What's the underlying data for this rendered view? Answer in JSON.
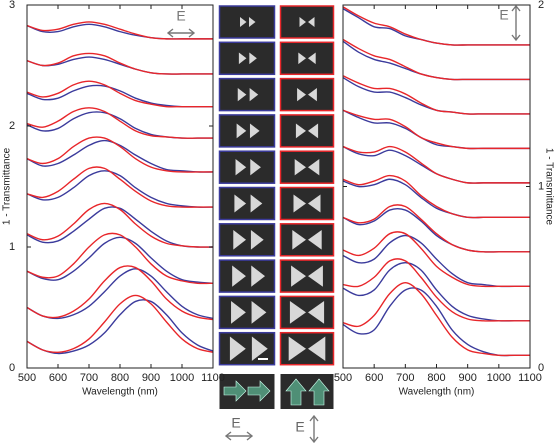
{
  "chart_data": [
    {
      "type": "line",
      "xlabel": "Wavelength (nm)",
      "ylabel": "1 - Transmittance",
      "annotation": "E",
      "x": [
        500,
        550,
        600,
        650,
        700,
        750,
        800,
        850,
        900,
        950,
        1000,
        1050,
        1100
      ],
      "xlim": [
        500,
        1100
      ],
      "xticks": [
        500,
        600,
        700,
        800,
        900,
        1000,
        1100
      ],
      "ylim": [
        0,
        3
      ],
      "yticks": [
        0,
        1,
        2,
        3
      ],
      "y_axis_side": "left",
      "series": [
        {
          "color": "#3b3b9c",
          "values": [
            0.22,
            0.15,
            0.12,
            0.14,
            0.19,
            0.29,
            0.44,
            0.55,
            0.55,
            0.44,
            0.29,
            0.19,
            0.14
          ]
        },
        {
          "color": "#e8262a",
          "values": [
            0.22,
            0.15,
            0.13,
            0.16,
            0.24,
            0.38,
            0.53,
            0.6,
            0.53,
            0.38,
            0.24,
            0.16,
            0.13
          ]
        },
        {
          "color": "#3b3b9c",
          "values": [
            0.5,
            0.43,
            0.41,
            0.44,
            0.51,
            0.63,
            0.76,
            0.82,
            0.76,
            0.63,
            0.51,
            0.44,
            0.41
          ]
        },
        {
          "color": "#e8262a",
          "values": [
            0.5,
            0.43,
            0.42,
            0.47,
            0.57,
            0.72,
            0.83,
            0.83,
            0.72,
            0.57,
            0.47,
            0.42,
            0.4
          ]
        },
        {
          "color": "#3b3b9c",
          "values": [
            0.8,
            0.74,
            0.73,
            0.8,
            0.91,
            1.03,
            1.08,
            1.03,
            0.91,
            0.8,
            0.73,
            0.71,
            0.7
          ]
        },
        {
          "color": "#e8262a",
          "values": [
            0.8,
            0.75,
            0.76,
            0.86,
            1.0,
            1.1,
            1.1,
            1.0,
            0.86,
            0.76,
            0.72,
            0.7,
            0.7
          ]
        },
        {
          "color": "#3b3b9c",
          "values": [
            1.1,
            1.04,
            1.05,
            1.13,
            1.23,
            1.32,
            1.32,
            1.23,
            1.13,
            1.05,
            1.01,
            1.0,
            1.0
          ]
        },
        {
          "color": "#e8262a",
          "values": [
            1.11,
            1.06,
            1.09,
            1.19,
            1.31,
            1.36,
            1.31,
            1.19,
            1.09,
            1.03,
            1.01,
            1.0,
            1.0
          ]
        },
        {
          "color": "#3b3b9c",
          "values": [
            1.44,
            1.39,
            1.41,
            1.49,
            1.59,
            1.63,
            1.59,
            1.49,
            1.41,
            1.36,
            1.34,
            1.33,
            1.33
          ]
        },
        {
          "color": "#e8262a",
          "values": [
            1.44,
            1.41,
            1.46,
            1.56,
            1.65,
            1.65,
            1.56,
            1.46,
            1.38,
            1.34,
            1.33,
            1.33,
            1.33
          ]
        },
        {
          "color": "#3b3b9c",
          "values": [
            1.73,
            1.67,
            1.69,
            1.76,
            1.84,
            1.88,
            1.84,
            1.76,
            1.69,
            1.64,
            1.63,
            1.62,
            1.62
          ]
        },
        {
          "color": "#e8262a",
          "values": [
            1.73,
            1.69,
            1.73,
            1.83,
            1.9,
            1.9,
            1.83,
            1.73,
            1.66,
            1.63,
            1.62,
            1.62,
            1.62
          ]
        },
        {
          "color": "#3b3b9c",
          "values": [
            2.01,
            1.96,
            1.98,
            2.06,
            2.11,
            2.11,
            2.06,
            1.98,
            1.93,
            1.91,
            1.9,
            1.9,
            1.9
          ]
        },
        {
          "color": "#e8262a",
          "values": [
            2.02,
            1.99,
            2.04,
            2.12,
            2.15,
            2.12,
            2.04,
            1.96,
            1.92,
            1.91,
            1.9,
            1.9,
            1.9
          ]
        },
        {
          "color": "#3b3b9c",
          "values": [
            2.27,
            2.22,
            2.23,
            2.29,
            2.33,
            2.33,
            2.29,
            2.23,
            2.19,
            2.17,
            2.16,
            2.16,
            2.16
          ]
        },
        {
          "color": "#e8262a",
          "values": [
            2.28,
            2.24,
            2.27,
            2.34,
            2.37,
            2.34,
            2.27,
            2.21,
            2.18,
            2.16,
            2.16,
            2.16,
            2.16
          ]
        },
        {
          "color": "#3b3b9c",
          "values": [
            2.54,
            2.5,
            2.51,
            2.55,
            2.57,
            2.55,
            2.51,
            2.47,
            2.44,
            2.43,
            2.43,
            2.43,
            2.43
          ]
        },
        {
          "color": "#e8262a",
          "values": [
            2.54,
            2.5,
            2.52,
            2.58,
            2.6,
            2.58,
            2.52,
            2.47,
            2.44,
            2.43,
            2.43,
            2.43,
            2.43
          ]
        },
        {
          "color": "#3b3b9c",
          "values": [
            2.83,
            2.78,
            2.78,
            2.82,
            2.84,
            2.82,
            2.78,
            2.75,
            2.73,
            2.72,
            2.72,
            2.72,
            2.72
          ]
        },
        {
          "color": "#e8262a",
          "values": [
            2.83,
            2.79,
            2.8,
            2.84,
            2.86,
            2.84,
            2.8,
            2.76,
            2.73,
            2.72,
            2.72,
            2.72,
            2.72
          ]
        }
      ]
    },
    {
      "type": "line",
      "xlabel": "Wavelength (nm)",
      "ylabel": "1 - Transmittance",
      "annotation": "E",
      "x": [
        500,
        550,
        600,
        650,
        700,
        750,
        800,
        850,
        900,
        950,
        1000,
        1050,
        1100
      ],
      "xlim": [
        500,
        1100
      ],
      "xticks": [
        500,
        600,
        700,
        800,
        900,
        1000,
        1100
      ],
      "ylim": [
        0,
        2
      ],
      "yticks": [
        0,
        1,
        2
      ],
      "y_axis_side": "right",
      "series": [
        {
          "color": "#3b3b9c",
          "values": [
            0.24,
            0.19,
            0.21,
            0.34,
            0.43,
            0.43,
            0.34,
            0.21,
            0.13,
            0.09,
            0.07,
            0.07,
            0.07
          ]
        },
        {
          "color": "#e8262a",
          "values": [
            0.25,
            0.23,
            0.29,
            0.41,
            0.47,
            0.41,
            0.29,
            0.17,
            0.1,
            0.08,
            0.07,
            0.07,
            0.07
          ]
        },
        {
          "color": "#3b3b9c",
          "values": [
            0.44,
            0.4,
            0.43,
            0.54,
            0.58,
            0.54,
            0.43,
            0.34,
            0.29,
            0.27,
            0.26,
            0.26,
            0.26
          ]
        },
        {
          "color": "#e8262a",
          "values": [
            0.46,
            0.45,
            0.5,
            0.59,
            0.59,
            0.5,
            0.39,
            0.31,
            0.27,
            0.26,
            0.26,
            0.26,
            0.26
          ]
        },
        {
          "color": "#3b3b9c",
          "values": [
            0.62,
            0.58,
            0.6,
            0.69,
            0.73,
            0.69,
            0.6,
            0.52,
            0.47,
            0.46,
            0.45,
            0.45,
            0.45
          ]
        },
        {
          "color": "#e8262a",
          "values": [
            0.65,
            0.62,
            0.66,
            0.74,
            0.74,
            0.66,
            0.56,
            0.5,
            0.46,
            0.45,
            0.45,
            0.45,
            0.45
          ]
        },
        {
          "color": "#3b3b9c",
          "values": [
            0.83,
            0.79,
            0.81,
            0.87,
            0.87,
            0.81,
            0.73,
            0.68,
            0.65,
            0.64,
            0.64,
            0.64,
            0.64
          ]
        },
        {
          "color": "#e8262a",
          "values": [
            0.83,
            0.8,
            0.82,
            0.89,
            0.89,
            0.82,
            0.74,
            0.68,
            0.65,
            0.64,
            0.64,
            0.64,
            0.64
          ]
        },
        {
          "color": "#3b3b9c",
          "values": [
            1.03,
            1.0,
            1.01,
            1.04,
            1.01,
            0.94,
            0.88,
            0.85,
            0.83,
            0.83,
            0.83,
            0.83,
            0.83
          ]
        },
        {
          "color": "#e8262a",
          "values": [
            1.04,
            1.01,
            1.03,
            1.06,
            1.03,
            0.95,
            0.89,
            0.85,
            0.83,
            0.83,
            0.83,
            0.83,
            0.83
          ]
        },
        {
          "color": "#3b3b9c",
          "values": [
            1.22,
            1.18,
            1.17,
            1.2,
            1.17,
            1.12,
            1.07,
            1.04,
            1.02,
            1.02,
            1.02,
            1.02,
            1.02
          ]
        },
        {
          "color": "#e8262a",
          "values": [
            1.22,
            1.19,
            1.19,
            1.22,
            1.19,
            1.13,
            1.07,
            1.04,
            1.02,
            1.02,
            1.02,
            1.02,
            1.02
          ]
        },
        {
          "color": "#3b3b9c",
          "values": [
            1.42,
            1.38,
            1.35,
            1.35,
            1.32,
            1.27,
            1.23,
            1.22,
            1.21,
            1.21,
            1.21,
            1.21,
            1.21
          ]
        },
        {
          "color": "#e8262a",
          "values": [
            1.42,
            1.39,
            1.37,
            1.37,
            1.33,
            1.27,
            1.24,
            1.22,
            1.21,
            1.21,
            1.21,
            1.21,
            1.21
          ]
        },
        {
          "color": "#3b3b9c",
          "values": [
            1.6,
            1.55,
            1.52,
            1.52,
            1.49,
            1.45,
            1.42,
            1.41,
            1.4,
            1.4,
            1.4,
            1.4,
            1.4
          ]
        },
        {
          "color": "#e8262a",
          "values": [
            1.61,
            1.57,
            1.54,
            1.54,
            1.51,
            1.46,
            1.42,
            1.41,
            1.4,
            1.4,
            1.4,
            1.4,
            1.4
          ]
        },
        {
          "color": "#3b3b9c",
          "values": [
            1.8,
            1.74,
            1.7,
            1.68,
            1.65,
            1.62,
            1.6,
            1.59,
            1.59,
            1.59,
            1.59,
            1.59,
            1.59
          ]
        },
        {
          "color": "#e8262a",
          "values": [
            1.81,
            1.76,
            1.72,
            1.7,
            1.66,
            1.62,
            1.6,
            1.59,
            1.59,
            1.59,
            1.59,
            1.59,
            1.59
          ]
        },
        {
          "color": "#3b3b9c",
          "values": [
            1.98,
            1.93,
            1.88,
            1.87,
            1.83,
            1.81,
            1.79,
            1.78,
            1.78,
            1.78,
            1.78,
            1.78,
            1.78
          ]
        },
        {
          "color": "#e8262a",
          "values": [
            1.99,
            1.94,
            1.9,
            1.88,
            1.84,
            1.81,
            1.79,
            1.78,
            1.78,
            1.78,
            1.78,
            1.78,
            1.78
          ]
        }
      ]
    }
  ],
  "sem_panel": {
    "polarization_labels": [
      "E",
      "E"
    ]
  }
}
